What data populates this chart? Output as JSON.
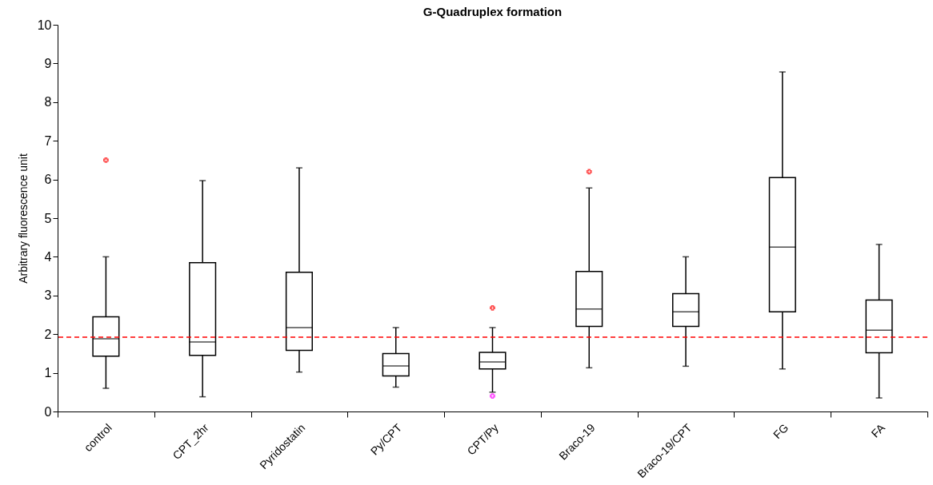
{
  "chart_data": {
    "type": "box",
    "title": "G-Quadruplex formation",
    "ylabel": "Arbitrary fluorescence unit",
    "categories": [
      "control",
      "CPT_2hr",
      "Pyridostatin",
      "Py/CPT",
      "CPT/Py",
      "Braco-19",
      "Braco-19/CPT",
      "FG",
      "FA"
    ],
    "ylim": [
      0,
      10
    ],
    "yticks": [
      0,
      1,
      2,
      3,
      4,
      5,
      6,
      7,
      8,
      9,
      10
    ],
    "grid": false,
    "series": [
      {
        "color": "#000000",
        "boxes": [
          {
            "low": 0.6,
            "q1": 1.43,
            "median": 1.88,
            "q3": 2.45,
            "high": 4.0
          },
          {
            "low": 0.38,
            "q1": 1.45,
            "median": 1.8,
            "q3": 3.85,
            "high": 5.97
          },
          {
            "low": 1.02,
            "q1": 1.58,
            "median": 2.17,
            "q3": 3.6,
            "high": 6.3
          },
          {
            "low": 0.63,
            "q1": 0.92,
            "median": 1.18,
            "q3": 1.5,
            "high": 2.17
          },
          {
            "low": 0.5,
            "q1": 1.1,
            "median": 1.28,
            "q3": 1.53,
            "high": 2.17
          },
          {
            "low": 1.13,
            "q1": 2.2,
            "median": 2.65,
            "q3": 3.62,
            "high": 5.78
          },
          {
            "low": 1.17,
            "q1": 2.2,
            "median": 2.58,
            "q3": 3.05,
            "high": 4.0
          },
          {
            "low": 1.1,
            "q1": 2.58,
            "median": 4.25,
            "q3": 6.05,
            "high": 8.78
          },
          {
            "low": 0.35,
            "q1": 1.52,
            "median": 2.1,
            "q3": 2.88,
            "high": 4.32
          }
        ]
      },
      {
        "type": "scatter",
        "colors": [
          "#ff0000",
          "#ff0000",
          "#ff0000",
          "#ff00ff"
        ],
        "marker": "cross",
        "x": [
          "control",
          "CPT/Py",
          "Braco-19",
          "CPT/Py"
        ],
        "values": [
          6.5,
          2.68,
          6.2,
          0.4
        ]
      }
    ],
    "ref_lines": [
      {
        "axis": "y",
        "value": 1.92,
        "color": "#ff0000",
        "line_style": "dashed"
      }
    ]
  }
}
